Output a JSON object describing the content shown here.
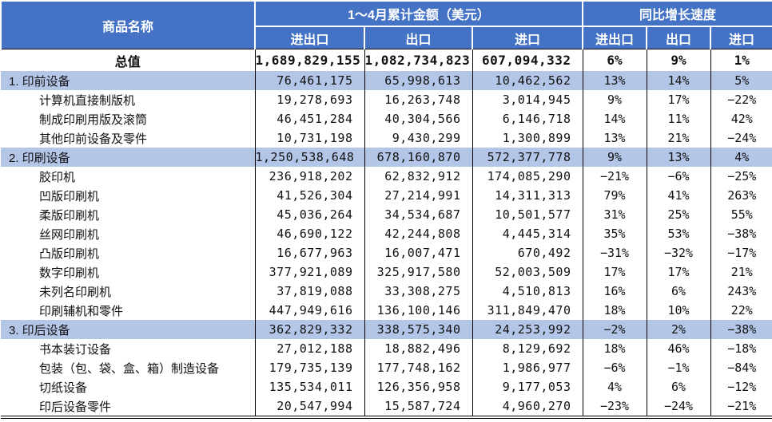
{
  "colors": {
    "header_bg": "#4472C4",
    "category_row_bg": "#B4C6E7",
    "header_text": "#FFFFFF",
    "grid_line": "#000000"
  },
  "table": {
    "header": {
      "product_name": "商品名称",
      "amount_group": "1～4月累计金额（美元）",
      "growth_group": "同比增长速度",
      "sub_columns": [
        "进出口",
        "出口",
        "进口",
        "进出口",
        "出口",
        "进口"
      ]
    },
    "rows": [
      {
        "type": "total",
        "name": "总值",
        "values": [
          "1,689,829,155",
          "1,082,734,823",
          "607,094,332"
        ],
        "growth": [
          "6%",
          "9%",
          "1%"
        ]
      },
      {
        "type": "category",
        "name": "1. 印前设备",
        "values": [
          "76,461,175",
          "65,998,613",
          "10,462,562"
        ],
        "growth": [
          "13%",
          "14%",
          "5%"
        ]
      },
      {
        "type": "item",
        "name": "计算机直接制版机",
        "values": [
          "19,278,693",
          "16,263,748",
          "3,014,945"
        ],
        "growth": [
          "9%",
          "17%",
          "−22%"
        ]
      },
      {
        "type": "item",
        "name": "制成印刷用版及滚筒",
        "values": [
          "46,451,284",
          "40,304,566",
          "6,146,718"
        ],
        "growth": [
          "14%",
          "11%",
          "42%"
        ]
      },
      {
        "type": "item",
        "name": "其他印前设备及零件",
        "values": [
          "10,731,198",
          "9,430,299",
          "1,300,899"
        ],
        "growth": [
          "13%",
          "21%",
          "−24%"
        ]
      },
      {
        "type": "category",
        "name": "2. 印刷设备",
        "values": [
          "1,250,538,648",
          "678,160,870",
          "572,377,778"
        ],
        "growth": [
          "9%",
          "13%",
          "4%"
        ]
      },
      {
        "type": "item",
        "name": "胶印机",
        "values": [
          "236,918,202",
          "62,832,912",
          "174,085,290"
        ],
        "growth": [
          "−21%",
          "−6%",
          "−25%"
        ]
      },
      {
        "type": "item",
        "name": "凹版印刷机",
        "values": [
          "41,526,304",
          "27,214,991",
          "14,311,313"
        ],
        "growth": [
          "79%",
          "41%",
          "263%"
        ]
      },
      {
        "type": "item",
        "name": "柔版印刷机",
        "values": [
          "45,036,264",
          "34,534,687",
          "10,501,577"
        ],
        "growth": [
          "31%",
          "25%",
          "55%"
        ]
      },
      {
        "type": "item",
        "name": "丝网印刷机",
        "values": [
          "46,690,122",
          "42,244,808",
          "4,445,314"
        ],
        "growth": [
          "35%",
          "53%",
          "−38%"
        ]
      },
      {
        "type": "item",
        "name": "凸版印刷机",
        "values": [
          "16,677,963",
          "16,007,471",
          "670,492"
        ],
        "growth": [
          "−31%",
          "−32%",
          "−17%"
        ]
      },
      {
        "type": "item",
        "name": "数字印刷机",
        "values": [
          "377,921,089",
          "325,917,580",
          "52,003,509"
        ],
        "growth": [
          "17%",
          "17%",
          "21%"
        ]
      },
      {
        "type": "item",
        "name": "未列名印刷机",
        "values": [
          "37,819,088",
          "33,308,275",
          "4,510,813"
        ],
        "growth": [
          "16%",
          "6%",
          "243%"
        ]
      },
      {
        "type": "item",
        "name": "印刷辅机和零件",
        "values": [
          "447,949,616",
          "136,100,146",
          "311,849,470"
        ],
        "growth": [
          "18%",
          "10%",
          "22%"
        ]
      },
      {
        "type": "category",
        "name": "3. 印后设备",
        "values": [
          "362,829,332",
          "338,575,340",
          "24,253,992"
        ],
        "growth": [
          "−2%",
          "2%",
          "−38%"
        ]
      },
      {
        "type": "item",
        "name": "书本装订设备",
        "values": [
          "27,012,188",
          "18,882,496",
          "8,129,692"
        ],
        "growth": [
          "18%",
          "46%",
          "−18%"
        ]
      },
      {
        "type": "item",
        "name": "包装（包、袋、盒、箱）制造设备",
        "values": [
          "179,735,139",
          "177,748,162",
          "1,986,977"
        ],
        "growth": [
          "−6%",
          "−1%",
          "−84%"
        ]
      },
      {
        "type": "item",
        "name": "切纸设备",
        "values": [
          "135,534,011",
          "126,356,958",
          "9,177,053"
        ],
        "growth": [
          "4%",
          "6%",
          "−12%"
        ]
      },
      {
        "type": "item",
        "name": "印后设备零件",
        "values": [
          "20,547,994",
          "15,587,724",
          "4,960,270"
        ],
        "growth": [
          "−23%",
          "−24%",
          "−21%"
        ]
      }
    ]
  }
}
